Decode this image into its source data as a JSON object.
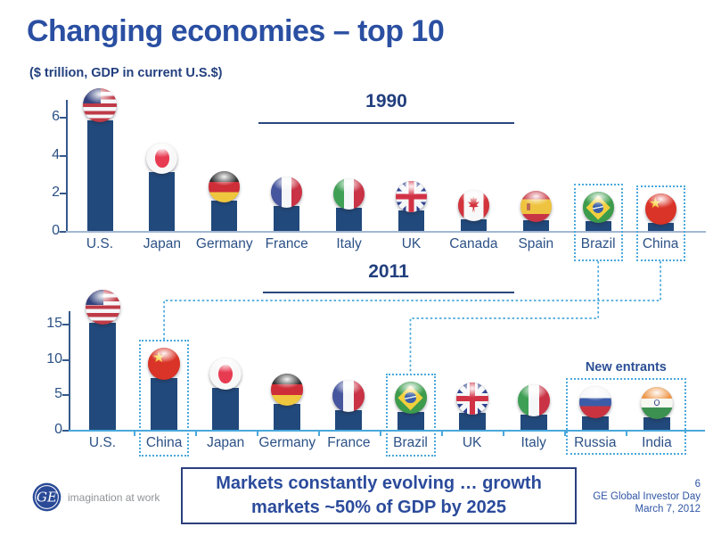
{
  "slide": {
    "title": "Changing economies – top 10",
    "subtitle": "($ trillion, GDP in current U.S.$)",
    "callout": {
      "line1": "Markets constantly evolving … growth",
      "line2": "markets ~50% of GDP by 2025"
    },
    "footer": {
      "page": "6",
      "event": "GE Global Investor Day",
      "date": "March 7, 2012"
    },
    "logo": {
      "monogram": "GE",
      "tagline": "imagination at work"
    }
  },
  "colors": {
    "title_blue": "#2a4fa2",
    "dark_navy": "#223f7e",
    "bar_navy": "#21497b",
    "label_blue": "#2b5186",
    "highlight_dash_blue": "#49a8dc",
    "top_axis_gray": "#a3b7d3"
  },
  "chart_data": [
    {
      "type": "bar",
      "title": "1990",
      "ylabel": "GDP ($ trillion)",
      "yticks": [
        0,
        2,
        4,
        6
      ],
      "ylim": [
        0,
        6.9
      ],
      "grid": false,
      "categories": [
        "U.S.",
        "Japan",
        "Germany",
        "France",
        "Italy",
        "UK",
        "Canada",
        "Spain",
        "Brazil",
        "China"
      ],
      "values": [
        5.8,
        3.1,
        1.6,
        1.3,
        1.2,
        1.1,
        0.6,
        0.55,
        0.5,
        0.4
      ],
      "flags": [
        "us",
        "japan",
        "germany",
        "france",
        "italy",
        "uk",
        "canada",
        "spain",
        "brazil",
        "china"
      ],
      "highlighted": [
        "Brazil",
        "China"
      ]
    },
    {
      "type": "bar",
      "title": "2011",
      "ylabel": "GDP ($ trillion)",
      "yticks": [
        0,
        5,
        10,
        15
      ],
      "ylim": [
        0,
        16.6
      ],
      "grid": false,
      "categories": [
        "U.S.",
        "China",
        "Japan",
        "Germany",
        "France",
        "Brazil",
        "UK",
        "Italy",
        "Russia",
        "India"
      ],
      "values": [
        15.1,
        7.3,
        5.9,
        3.6,
        2.8,
        2.5,
        2.4,
        2.2,
        1.9,
        1.8
      ],
      "flags": [
        "us",
        "china",
        "japan",
        "germany",
        "france",
        "brazil",
        "uk",
        "italy",
        "russia",
        "india"
      ],
      "highlighted": [
        "China",
        "Brazil"
      ],
      "new_entrants": {
        "label": "New entrants",
        "categories": [
          "Russia",
          "India"
        ]
      }
    }
  ]
}
